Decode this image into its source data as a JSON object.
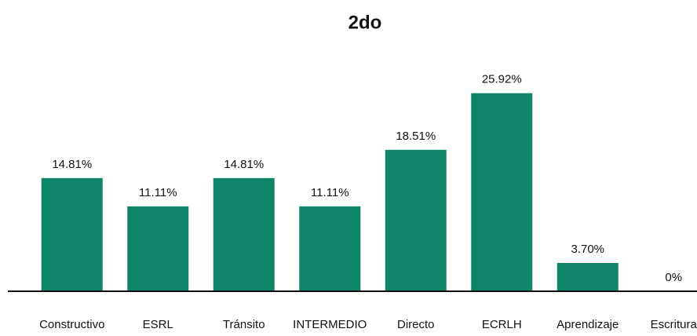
{
  "chart_data": {
    "type": "bar",
    "title": "2do",
    "categories": [
      "Constructivo",
      "ESRL",
      "Tránsito",
      "INTERMEDIO",
      "Directo",
      "ECRLH",
      "Aprendizaje",
      "Escritura"
    ],
    "values": [
      14.81,
      11.11,
      14.81,
      11.11,
      18.51,
      25.92,
      3.7,
      0
    ],
    "value_labels": [
      "14.81%",
      "11.11%",
      "14.81%",
      "11.11%",
      "18.51%",
      "25.92%",
      "3.70%",
      "0%"
    ],
    "color": "#0e8468",
    "ylim": [
      0,
      30
    ]
  }
}
